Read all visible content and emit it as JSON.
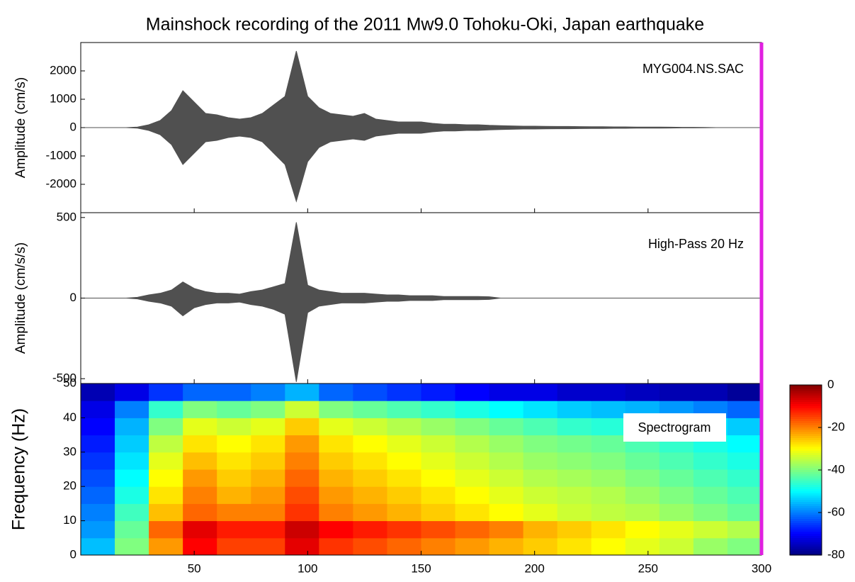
{
  "title": "Mainshock recording of the 2011 Mw9.0 Tohoku-Oki, Japan earthquake",
  "cursor_x": 300,
  "cursor_color": "#e020e0",
  "chart_data": [
    {
      "type": "waveform",
      "annotation": "MYG004.NS.SAC",
      "ylabel": "Amplitude (cm/s)",
      "color": "#505050",
      "xlim": [
        0,
        300
      ],
      "xticks": [
        50,
        100,
        150,
        200,
        250,
        300
      ],
      "ylim": [
        -3000,
        3000
      ],
      "yticks": [
        -2000,
        -1000,
        0,
        1000,
        2000
      ],
      "x": [
        0,
        5,
        10,
        15,
        20,
        25,
        30,
        35,
        40,
        45,
        50,
        55,
        60,
        65,
        70,
        75,
        80,
        85,
        90,
        95,
        100,
        105,
        110,
        115,
        120,
        125,
        130,
        135,
        140,
        145,
        150,
        155,
        160,
        165,
        170,
        175,
        180,
        185,
        190,
        195,
        200,
        205,
        210,
        215,
        220,
        225,
        230,
        235,
        240,
        245,
        250,
        255,
        260,
        265,
        270,
        275,
        280,
        285,
        290,
        295,
        300
      ],
      "upper": [
        0,
        0,
        0,
        0,
        0,
        20,
        100,
        250,
        600,
        1300,
        900,
        500,
        450,
        350,
        300,
        350,
        500,
        800,
        1100,
        2700,
        1100,
        700,
        500,
        450,
        400,
        500,
        300,
        250,
        200,
        200,
        200,
        150,
        120,
        120,
        100,
        100,
        80,
        70,
        60,
        50,
        50,
        45,
        40,
        40,
        35,
        30,
        30,
        25,
        25,
        20,
        20,
        20,
        15,
        10,
        10,
        5,
        0,
        0,
        0,
        0,
        0
      ],
      "lower": [
        0,
        0,
        0,
        0,
        0,
        -20,
        -100,
        -250,
        -600,
        -1300,
        -900,
        -500,
        -450,
        -350,
        -300,
        -350,
        -500,
        -900,
        -1300,
        -2600,
        -1200,
        -700,
        -500,
        -450,
        -400,
        -450,
        -300,
        -250,
        -200,
        -200,
        -200,
        -150,
        -120,
        -120,
        -100,
        -100,
        -80,
        -70,
        -60,
        -50,
        -50,
        -45,
        -40,
        -40,
        -35,
        -30,
        -30,
        -25,
        -25,
        -20,
        -20,
        -20,
        -15,
        -10,
        -10,
        -5,
        0,
        0,
        0,
        0,
        0
      ]
    },
    {
      "type": "waveform",
      "annotation": "High-Pass 20 Hz",
      "ylabel": "Amplitude (cm/s/s)",
      "color": "#505050",
      "xlim": [
        0,
        300
      ],
      "xticks": [
        50,
        100,
        150,
        200,
        250,
        300
      ],
      "ylim": [
        -530,
        530
      ],
      "yticks": [
        -500,
        0,
        500
      ],
      "x": [
        0,
        5,
        10,
        15,
        20,
        25,
        30,
        35,
        40,
        45,
        50,
        55,
        60,
        65,
        70,
        75,
        80,
        85,
        90,
        95,
        100,
        105,
        110,
        115,
        120,
        125,
        130,
        135,
        140,
        145,
        150,
        155,
        160,
        165,
        170,
        175,
        180,
        185,
        190,
        195,
        200,
        205,
        210,
        215,
        220,
        225,
        230,
        235,
        240,
        245,
        250,
        255,
        260,
        265,
        270,
        275,
        280,
        285,
        290,
        295,
        300
      ],
      "upper": [
        0,
        0,
        0,
        0,
        0,
        5,
        20,
        30,
        50,
        100,
        60,
        40,
        30,
        30,
        25,
        40,
        50,
        70,
        90,
        470,
        80,
        50,
        40,
        30,
        30,
        30,
        25,
        20,
        20,
        15,
        15,
        15,
        10,
        10,
        10,
        10,
        8,
        0,
        0,
        0,
        0,
        0,
        0,
        0,
        0,
        0,
        0,
        0,
        0,
        0,
        0,
        0,
        0,
        0,
        0,
        0,
        0,
        0,
        0,
        0,
        0
      ],
      "lower": [
        0,
        0,
        0,
        0,
        0,
        -5,
        -20,
        -30,
        -50,
        -110,
        -60,
        -40,
        -30,
        -30,
        -25,
        -40,
        -50,
        -70,
        -100,
        -520,
        -90,
        -50,
        -40,
        -30,
        -30,
        -30,
        -25,
        -20,
        -20,
        -15,
        -15,
        -15,
        -10,
        -10,
        -10,
        -10,
        -8,
        0,
        0,
        0,
        0,
        0,
        0,
        0,
        0,
        0,
        0,
        0,
        0,
        0,
        0,
        0,
        0,
        0,
        0,
        0,
        0,
        0,
        0,
        0,
        0
      ]
    },
    {
      "type": "spectrogram",
      "annotation": "Spectrogram",
      "ylabel": "Frequency (Hz)",
      "xlim": [
        0,
        300
      ],
      "xticks": [
        50,
        100,
        150,
        200,
        250,
        300
      ],
      "ylim": [
        0,
        50
      ],
      "yticks": [
        0,
        10,
        20,
        30,
        40,
        50
      ],
      "colormap": "jet",
      "clim": [
        -80,
        0
      ],
      "cticks": [
        0,
        -20,
        -40,
        -60,
        -80
      ],
      "xbins": [
        0,
        15,
        30,
        45,
        60,
        75,
        90,
        105,
        120,
        135,
        150,
        165,
        180,
        195,
        210,
        225,
        240,
        255,
        270,
        285,
        300
      ],
      "ybins": [
        0,
        5,
        10,
        15,
        20,
        25,
        30,
        35,
        40,
        45,
        50
      ],
      "z": [
        [
          -55,
          -40,
          -22,
          -10,
          -15,
          -15,
          -8,
          -14,
          -16,
          -18,
          -20,
          -22,
          -24,
          -26,
          -28,
          -30,
          -32,
          -34,
          -38,
          -40
        ],
        [
          -58,
          -42,
          -18,
          -8,
          -12,
          -12,
          -6,
          -10,
          -12,
          -14,
          -16,
          -18,
          -20,
          -24,
          -26,
          -28,
          -30,
          -32,
          -34,
          -36
        ],
        [
          -60,
          -45,
          -25,
          -18,
          -20,
          -20,
          -14,
          -20,
          -22,
          -24,
          -26,
          -28,
          -30,
          -32,
          -34,
          -35,
          -36,
          -38,
          -40,
          -42
        ],
        [
          -62,
          -48,
          -28,
          -20,
          -24,
          -22,
          -16,
          -22,
          -24,
          -26,
          -28,
          -30,
          -32,
          -34,
          -35,
          -36,
          -38,
          -40,
          -42,
          -44
        ],
        [
          -64,
          -50,
          -30,
          -22,
          -26,
          -24,
          -18,
          -24,
          -26,
          -28,
          -30,
          -32,
          -34,
          -36,
          -37,
          -38,
          -40,
          -42,
          -44,
          -46
        ],
        [
          -66,
          -52,
          -32,
          -25,
          -28,
          -26,
          -20,
          -26,
          -28,
          -30,
          -32,
          -34,
          -36,
          -38,
          -39,
          -40,
          -42,
          -44,
          -46,
          -48
        ],
        [
          -68,
          -54,
          -35,
          -28,
          -30,
          -28,
          -22,
          -28,
          -30,
          -32,
          -34,
          -36,
          -38,
          -40,
          -41,
          -42,
          -44,
          -46,
          -48,
          -50
        ],
        [
          -70,
          -56,
          -40,
          -32,
          -34,
          -32,
          -26,
          -32,
          -34,
          -36,
          -38,
          -40,
          -42,
          -44,
          -46,
          -47,
          -48,
          -50,
          -52,
          -54
        ],
        [
          -72,
          -60,
          -46,
          -40,
          -42,
          -40,
          -34,
          -40,
          -42,
          -44,
          -46,
          -48,
          -50,
          -52,
          -54,
          -55,
          -56,
          -58,
          -60,
          -62
        ],
        [
          -76,
          -72,
          -66,
          -62,
          -62,
          -60,
          -56,
          -62,
          -64,
          -66,
          -68,
          -70,
          -72,
          -72,
          -74,
          -74,
          -75,
          -76,
          -76,
          -78
        ]
      ]
    }
  ]
}
